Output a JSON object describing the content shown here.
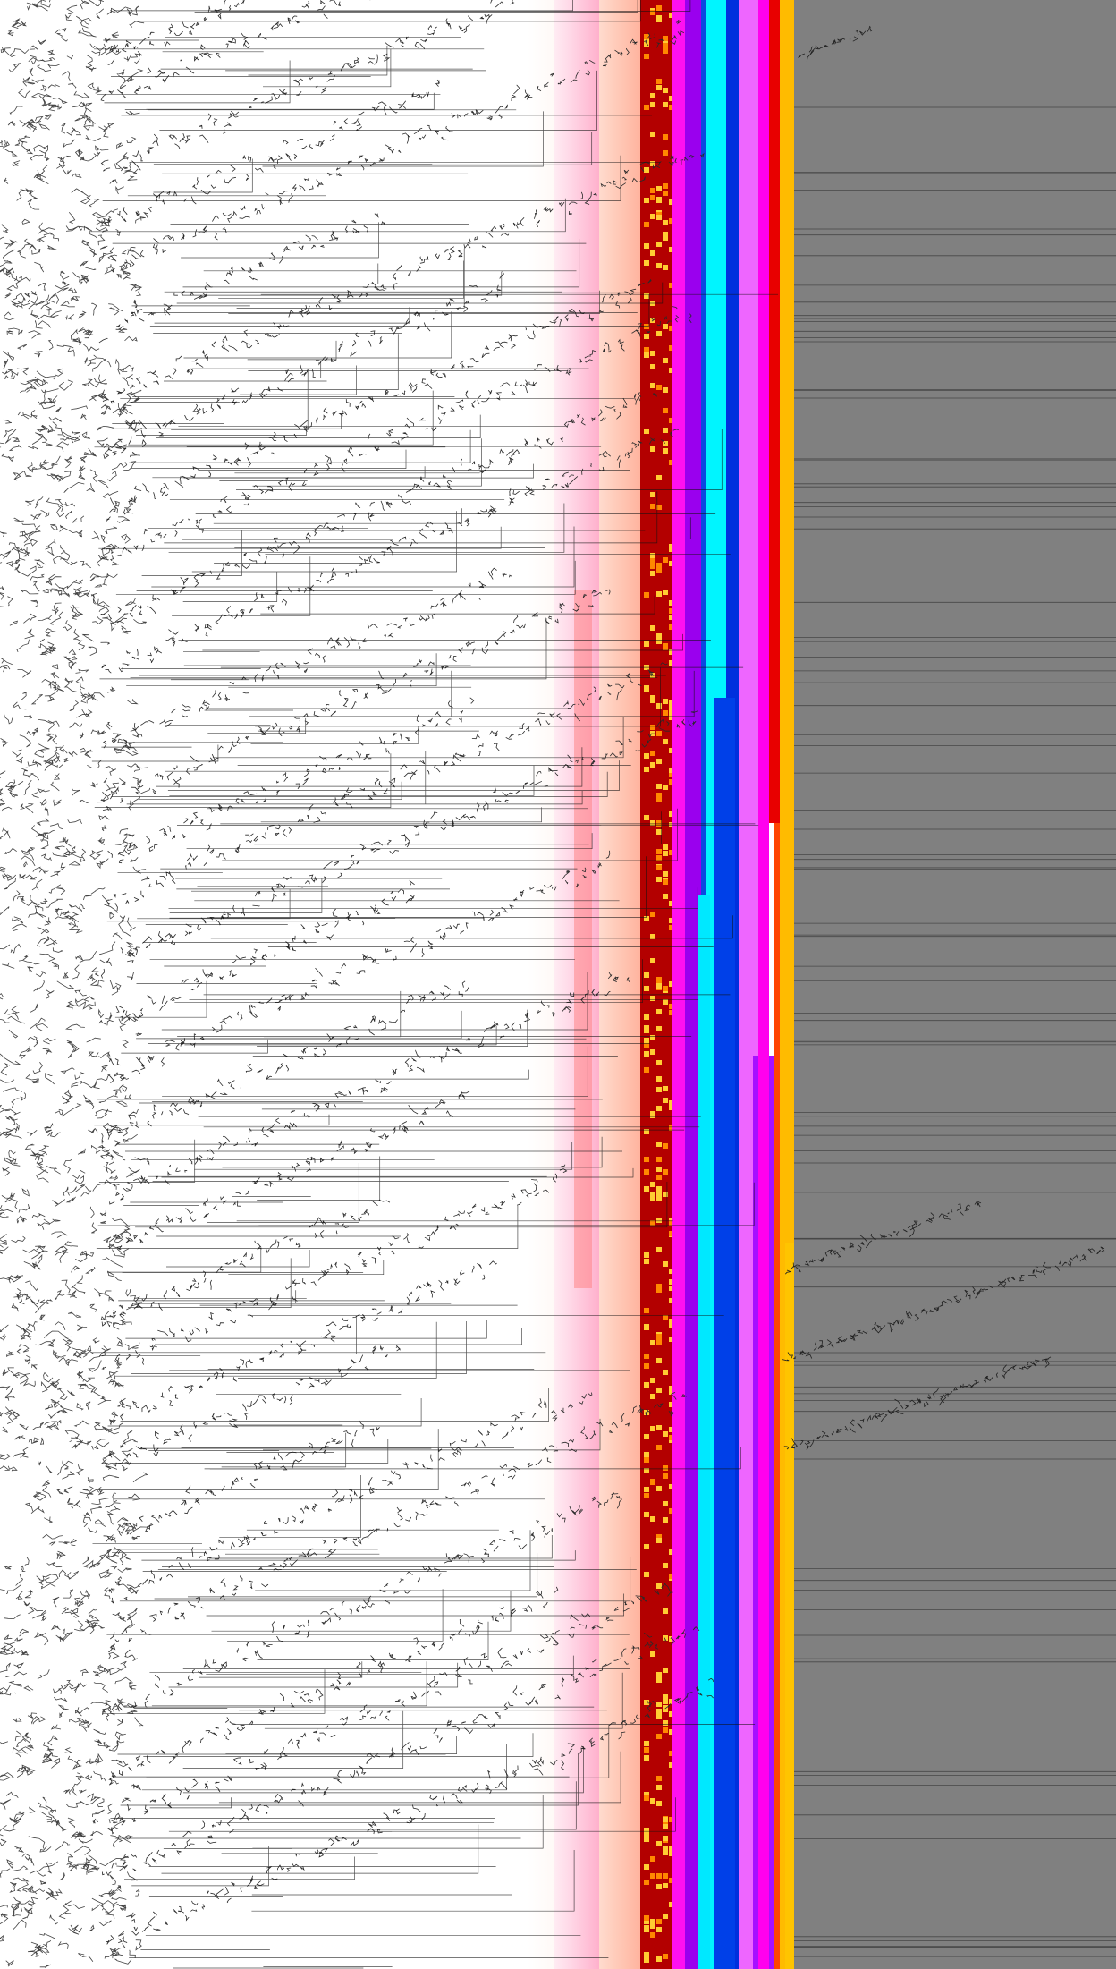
{
  "image": {
    "description_kind": "abstract-generative-visualization",
    "background_color": "#ffffff",
    "right_field_color": "#7f7f7f",
    "trunk_color": "#1a1a1a",
    "line_color": "#000000"
  },
  "bands": [
    {
      "name": "peach-gradient",
      "colors": [
        "#fff4ee",
        "#ffd9c9",
        "#ffc0a8",
        "#ffb0a0"
      ]
    },
    {
      "name": "pink-gradient",
      "colors": [
        "#ffe6f0",
        "#ffb6d4",
        "#ff9cc6"
      ]
    },
    {
      "name": "dark-red",
      "colors": [
        "#b00000",
        "#c00000"
      ]
    },
    {
      "name": "yellow-speckle",
      "colors": [
        "#ffcc33",
        "#ff9900"
      ]
    },
    {
      "name": "magenta",
      "colors": [
        "#ff00ff"
      ]
    },
    {
      "name": "purple",
      "colors": [
        "#9900ee",
        "#aa11ff"
      ]
    },
    {
      "name": "royal-blue",
      "colors": [
        "#0044dd",
        "#0022cc"
      ]
    },
    {
      "name": "cyan",
      "colors": [
        "#00ffff"
      ]
    },
    {
      "name": "violet-pink",
      "colors": [
        "#ee66ff",
        "#ff77ff"
      ]
    },
    {
      "name": "amber",
      "colors": [
        "#ffcc00",
        "#ffaa00"
      ]
    },
    {
      "name": "red-orange-speckle",
      "colors": [
        "#ff3300",
        "#ff6600"
      ]
    }
  ]
}
